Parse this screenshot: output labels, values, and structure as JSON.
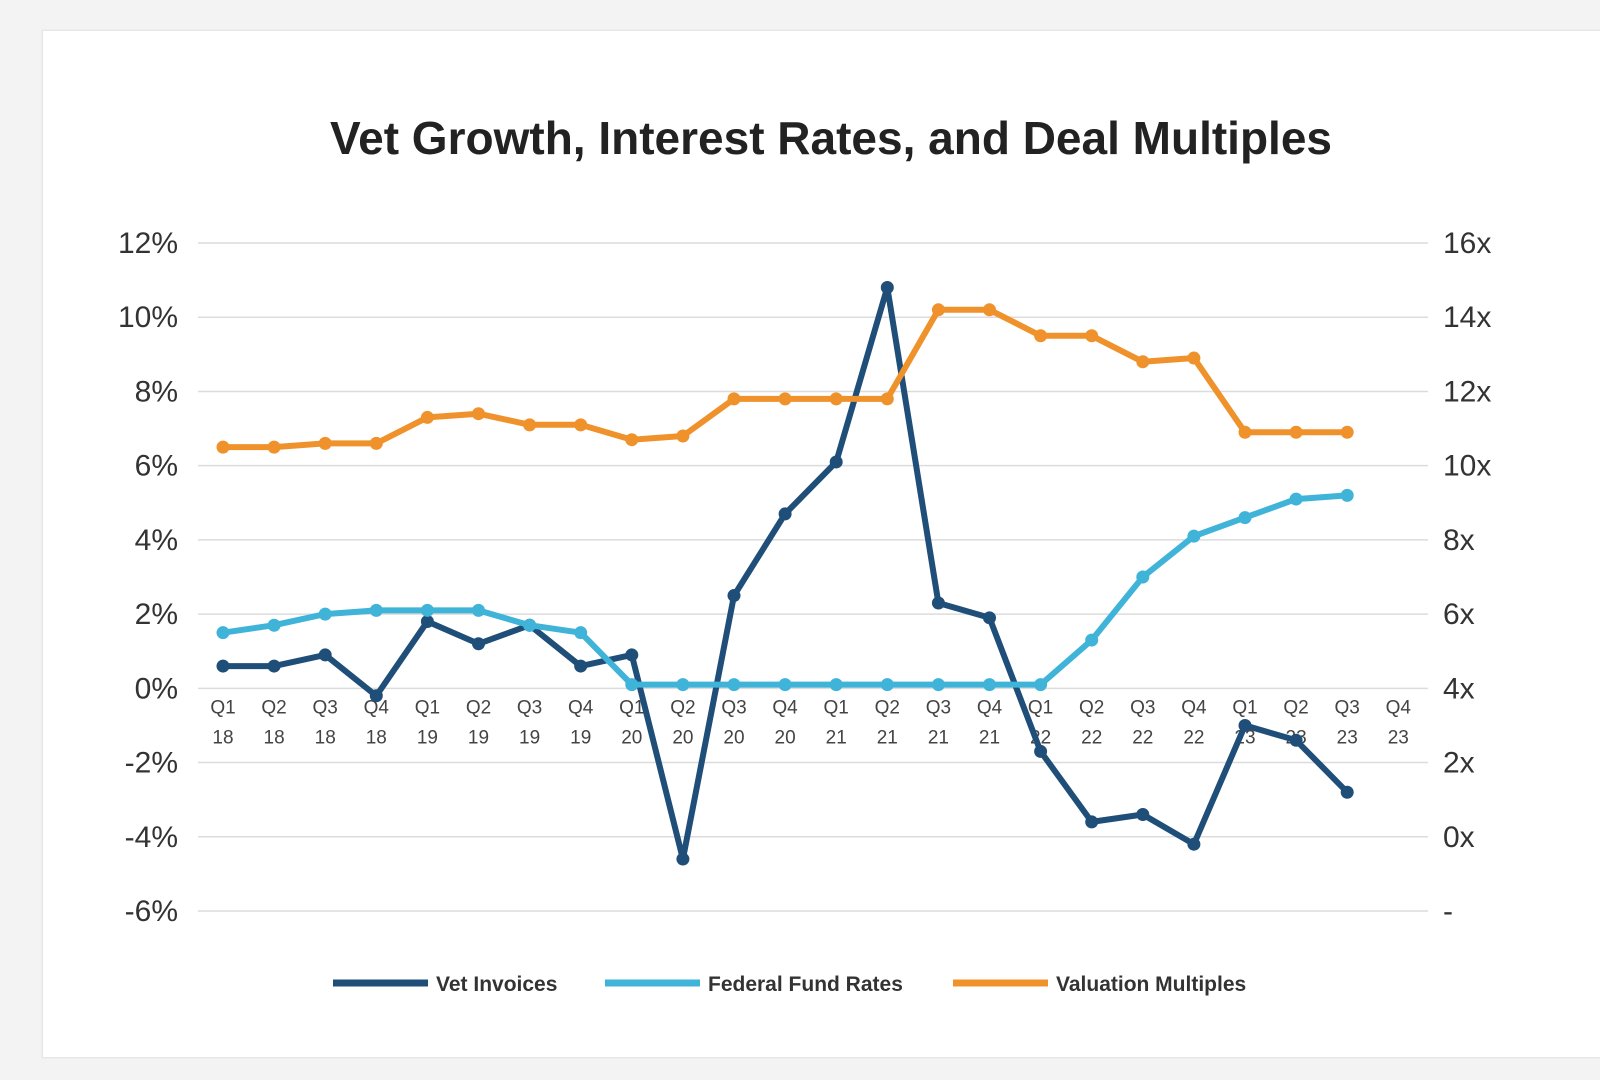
{
  "chart_data": {
    "type": "line",
    "title": "Vet Growth, Interest Rates, and Deal Multiples",
    "x_categories": [
      [
        "Q1",
        "18"
      ],
      [
        "Q2",
        "18"
      ],
      [
        "Q3",
        "18"
      ],
      [
        "Q4",
        "18"
      ],
      [
        "Q1",
        "19"
      ],
      [
        "Q2",
        "19"
      ],
      [
        "Q3",
        "19"
      ],
      [
        "Q4",
        "19"
      ],
      [
        "Q1",
        "20"
      ],
      [
        "Q2",
        "20"
      ],
      [
        "Q3",
        "20"
      ],
      [
        "Q4",
        "20"
      ],
      [
        "Q1",
        "21"
      ],
      [
        "Q2",
        "21"
      ],
      [
        "Q3",
        "21"
      ],
      [
        "Q4",
        "21"
      ],
      [
        "Q1",
        "22"
      ],
      [
        "Q2",
        "22"
      ],
      [
        "Q3",
        "22"
      ],
      [
        "Q4",
        "22"
      ],
      [
        "Q1",
        "23"
      ],
      [
        "Q2",
        "23"
      ],
      [
        "Q3",
        "23"
      ],
      [
        "Q4",
        "23"
      ]
    ],
    "y_left": {
      "ylim": [
        -6,
        12
      ],
      "ticks": [
        12,
        10,
        8,
        6,
        4,
        2,
        0,
        -2,
        -4,
        -6
      ],
      "tick_labels": [
        "12%",
        "10%",
        "8%",
        "6%",
        "4%",
        "2%",
        "0%",
        "-2%",
        "-4%",
        "-6%"
      ]
    },
    "y_right": {
      "ylim": [
        -2,
        16
      ],
      "ticks": [
        16,
        14,
        12,
        10,
        8,
        6,
        4,
        2,
        0,
        -2
      ],
      "tick_labels": [
        "16x",
        "14x",
        "12x",
        "10x",
        "8x",
        "6x",
        "4x",
        "2x",
        "0x",
        "-"
      ]
    },
    "grid": true,
    "legend_position": "bottom",
    "series": [
      {
        "name": "Vet Invoices",
        "axis": "left",
        "color": "#1f4e79",
        "values": [
          0.6,
          0.6,
          0.9,
          -0.2,
          1.8,
          1.2,
          1.7,
          0.6,
          0.9,
          -4.6,
          2.5,
          4.7,
          6.1,
          10.8,
          2.3,
          1.9,
          -1.7,
          -3.6,
          -3.4,
          -4.2,
          -1.0,
          -1.4,
          -2.8
        ]
      },
      {
        "name": "Federal Fund Rates",
        "axis": "left",
        "color": "#3fb4d8",
        "values": [
          1.5,
          1.7,
          2.0,
          2.1,
          2.1,
          2.1,
          1.7,
          1.5,
          0.1,
          0.1,
          0.1,
          0.1,
          0.1,
          0.1,
          0.1,
          0.1,
          0.1,
          1.3,
          3.0,
          4.1,
          4.6,
          5.1,
          5.2
        ]
      },
      {
        "name": "Valuation Multiples",
        "axis": "right",
        "color": "#f0922b",
        "values": [
          10.5,
          10.5,
          10.6,
          10.6,
          11.3,
          11.4,
          11.1,
          11.1,
          10.7,
          10.8,
          11.8,
          11.8,
          11.8,
          11.8,
          14.2,
          14.2,
          13.5,
          13.5,
          12.8,
          12.9,
          10.9,
          10.9,
          10.9
        ]
      }
    ]
  }
}
